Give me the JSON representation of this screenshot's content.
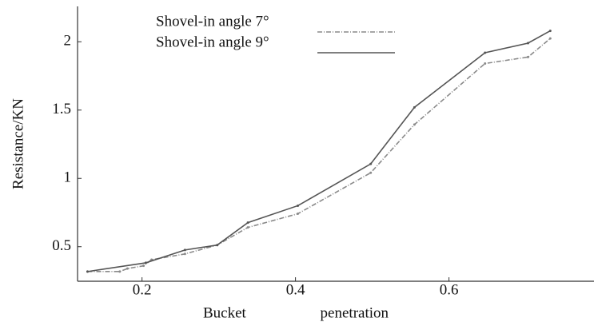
{
  "chart_data": {
    "type": "line",
    "x_label": "Bucket penetration",
    "y_label": "Resistance/KN",
    "series": [
      {
        "name": "Shovel-in angle 7°",
        "color": "#8a8a8a",
        "dash": "6,2,1,2",
        "x": [
          0.129,
          0.171,
          0.181,
          0.202,
          0.2125,
          0.256,
          0.298,
          0.338,
          0.403,
          0.498,
          0.555,
          0.647,
          0.703,
          0.732
        ],
        "values": [
          0.318,
          0.318,
          0.34,
          0.36,
          0.405,
          0.447,
          0.512,
          0.641,
          0.741,
          1.041,
          1.394,
          1.841,
          1.888,
          2.024
        ]
      },
      {
        "name": "Shovel-in angle 9°",
        "color": "#555555",
        "x": [
          0.129,
          0.205,
          0.256,
          0.298,
          0.338,
          0.403,
          0.498,
          0.555,
          0.647,
          0.703,
          0.732
        ],
        "values": [
          0.318,
          0.382,
          0.476,
          0.512,
          0.676,
          0.8,
          1.106,
          1.52,
          1.92,
          1.99,
          2.08
        ]
      }
    ],
    "xlim": [
      0.116,
      0.789
    ],
    "ylim": [
      0.247,
      2.259
    ],
    "xticks": [
      0.2,
      0.4,
      0.6
    ],
    "yticks": [
      0.5,
      1,
      1.5,
      2
    ]
  }
}
